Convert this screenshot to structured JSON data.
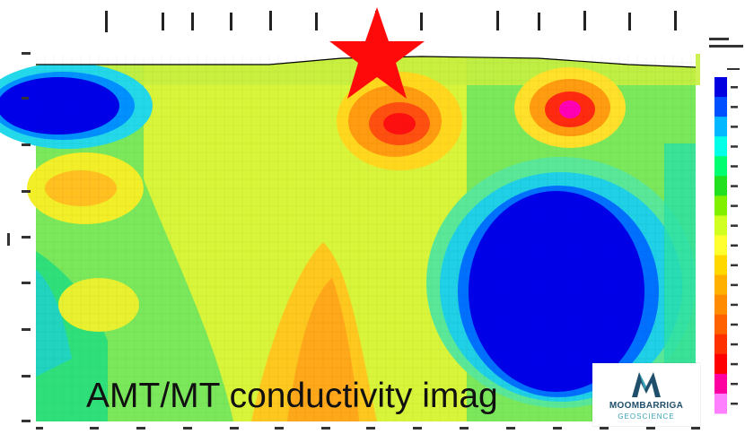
{
  "caption": "AMT/MT conductivity imag",
  "logo": {
    "name": "MOOMBARRIGA",
    "sub": "GEOSCIENCE"
  },
  "colors": {
    "star": "#ff0a0a",
    "scale": [
      "#0000e0",
      "#0050ff",
      "#00b8ff",
      "#00ffe6",
      "#00ff70",
      "#20e020",
      "#80f000",
      "#d0ff20",
      "#ffff30",
      "#ffd800",
      "#ffb000",
      "#ff8c00",
      "#ff6000",
      "#ff3000",
      "#ff0000",
      "#ff00a0",
      "#ff80ff"
    ]
  }
}
